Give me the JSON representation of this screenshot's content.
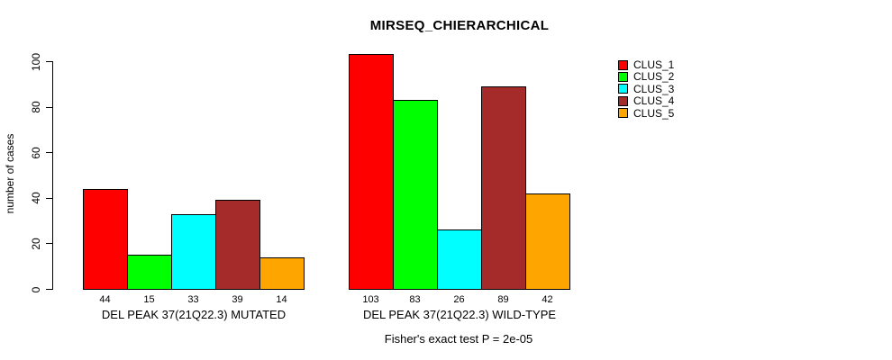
{
  "chart_data": {
    "type": "bar",
    "title": "MIRSEQ_CHIERARCHICAL",
    "ylabel": "number of cases",
    "xlabel": "",
    "ylim": [
      0,
      100
    ],
    "yticks": [
      0,
      20,
      40,
      60,
      80,
      100
    ],
    "grid": false,
    "bar_value_labels_shown": true,
    "groups": [
      "DEL PEAK 37(21Q22.3) MUTATED",
      "DEL PEAK 37(21Q22.3) WILD-TYPE"
    ],
    "series": [
      {
        "name": "CLUS_1",
        "color": "#FF0000",
        "values": [
          44,
          103
        ]
      },
      {
        "name": "CLUS_2",
        "color": "#00FF00",
        "values": [
          15,
          83
        ]
      },
      {
        "name": "CLUS_3",
        "color": "#00FFFF",
        "values": [
          33,
          26
        ]
      },
      {
        "name": "CLUS_4",
        "color": "#A52A2A",
        "values": [
          39,
          89
        ]
      },
      {
        "name": "CLUS_5",
        "color": "#FFA500",
        "values": [
          14,
          42
        ]
      }
    ],
    "legend": {
      "position": "top-right",
      "entries": [
        "CLUS_1",
        "CLUS_2",
        "CLUS_3",
        "CLUS_4",
        "CLUS_5"
      ]
    },
    "footer": "Fisher's exact test P = 2e-05"
  }
}
